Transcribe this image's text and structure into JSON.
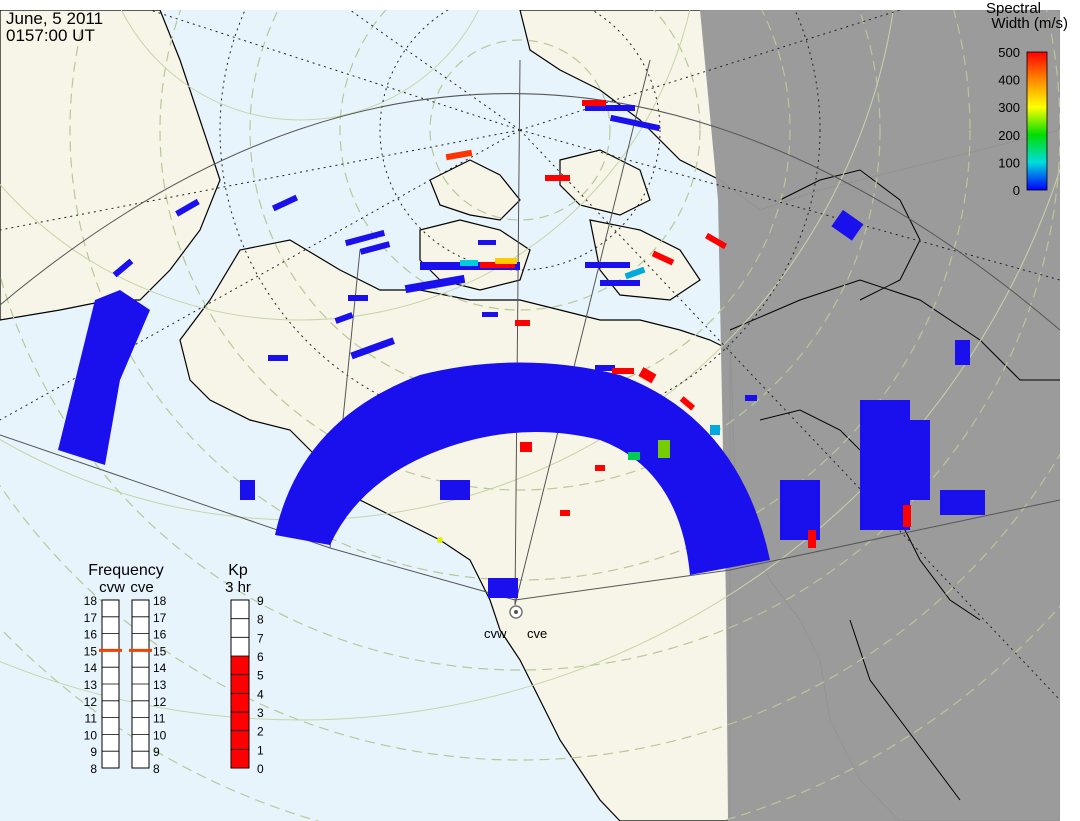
{
  "header": {
    "date": "June, 5 2011",
    "time": "0157:00 UT"
  },
  "colorbar": {
    "title_line1": "Spectral",
    "title_line2": "Width (m/s)",
    "ticks": [
      "500",
      "400",
      "300",
      "200",
      "100",
      "0"
    ],
    "stops": [
      "#ff0000",
      "#ff8800",
      "#ffff00",
      "#00dd00",
      "#00dddd",
      "#0000ff"
    ]
  },
  "frequency": {
    "title": "Frequency",
    "sub_left": "cvw",
    "sub_right": "cve",
    "labels": [
      "18",
      "17",
      "16",
      "15",
      "14",
      "13",
      "12",
      "11",
      "10",
      "9",
      "8"
    ],
    "cvw_mhz": 15,
    "cve_mhz": 15
  },
  "kp": {
    "title": "Kp",
    "sub": "3 hr",
    "labels": [
      "9",
      "8",
      "7",
      "6",
      "5",
      "4",
      "3",
      "2",
      "1",
      "0"
    ],
    "value": 6
  },
  "radars": {
    "west": "cvw",
    "east": "cve"
  },
  "colors": {
    "ocean": "#e8f4fc",
    "land": "#f7f5e7",
    "night": "#989898",
    "scatter_blue": "#1a10ee",
    "scatter_red": "#ff0000",
    "marker": "#ee4400"
  }
}
